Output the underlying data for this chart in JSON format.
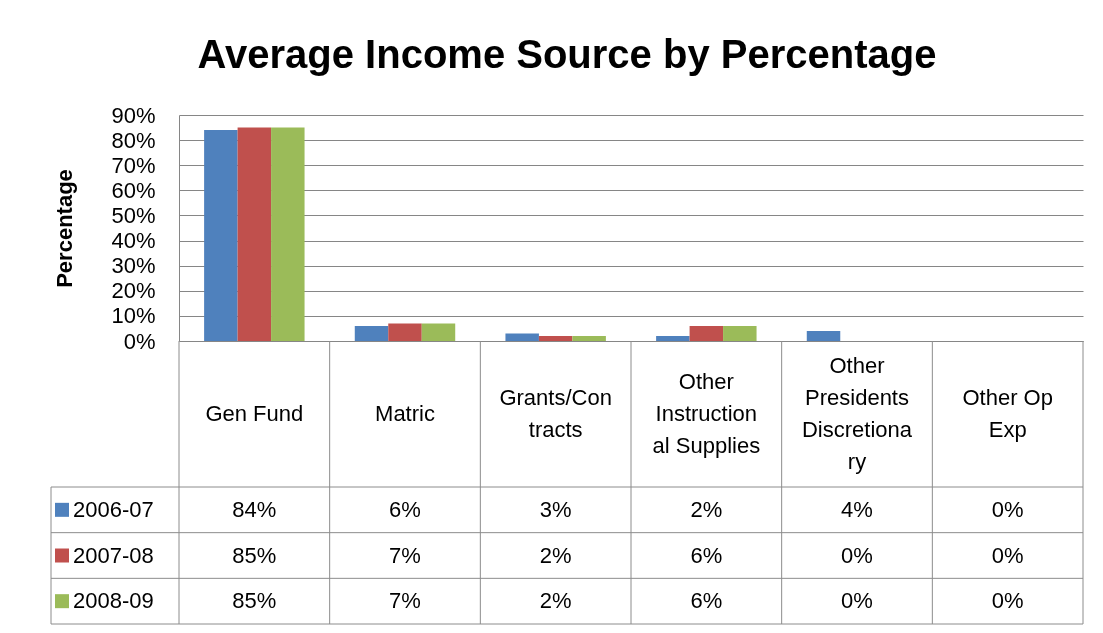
{
  "chart_data": {
    "type": "bar",
    "title": "Average Income Source by Percentage",
    "ylabel": "Percentage",
    "categories": [
      "Gen Fund",
      "Matric",
      "Grants/Contracts",
      "Other Instructional Supplies",
      "Other Presidents Discretionary",
      "Other Op Exp"
    ],
    "series": [
      {
        "name": "2006-07",
        "color": "#4f81bd",
        "values": [
          84,
          6,
          3,
          2,
          4,
          0
        ],
        "value_labels": [
          "84%",
          "6%",
          "3%",
          "2%",
          "4%",
          "0%"
        ]
      },
      {
        "name": "2007-08",
        "color": "#c0504d",
        "values": [
          85,
          7,
          2,
          6,
          0,
          0
        ],
        "value_labels": [
          "85%",
          "7%",
          "2%",
          "6%",
          "0%",
          "0%"
        ]
      },
      {
        "name": "2008-09",
        "color": "#9bbb59",
        "values": [
          85,
          7,
          2,
          6,
          0,
          0
        ],
        "value_labels": [
          "85%",
          "7%",
          "2%",
          "6%",
          "0%",
          "0%"
        ]
      }
    ],
    "ylim": [
      0,
      90
    ],
    "yticks": [
      {
        "value": 0,
        "label": "0%"
      },
      {
        "value": 10,
        "label": "10%"
      },
      {
        "value": 20,
        "label": "20%"
      },
      {
        "value": 30,
        "label": "30%"
      },
      {
        "value": 40,
        "label": "40%"
      },
      {
        "value": 50,
        "label": "50%"
      },
      {
        "value": 60,
        "label": "60%"
      },
      {
        "value": 70,
        "label": "70%"
      },
      {
        "value": 80,
        "label": "80%"
      },
      {
        "value": 90,
        "label": "90%"
      }
    ],
    "grid": "y",
    "legend": "bottom left"
  }
}
